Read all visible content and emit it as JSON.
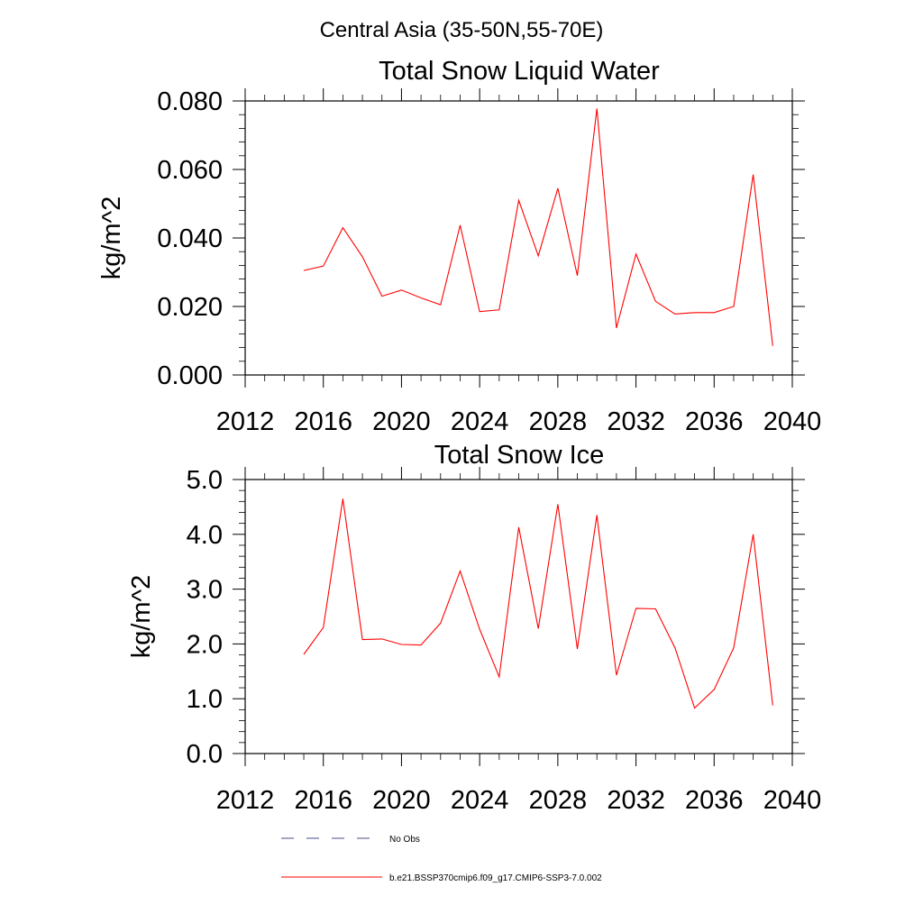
{
  "page": {
    "suptitle": "Central Asia (35-50N,55-70E)"
  },
  "chart_data": [
    {
      "type": "line",
      "title": "Total Snow Liquid Water",
      "ylabel": "kg/m^2",
      "xlim": [
        2012,
        2040
      ],
      "ylim": [
        0.0,
        0.08
      ],
      "xticks": [
        2012,
        2016,
        2020,
        2024,
        2028,
        2032,
        2036,
        2040
      ],
      "xtick_labels": [
        "2012",
        "2016",
        "2020",
        "2024",
        "2028",
        "2032",
        "2036",
        "2040"
      ],
      "yticks": [
        0.0,
        0.02,
        0.04,
        0.06,
        0.08
      ],
      "ytick_labels": [
        "0.000",
        "0.020",
        "0.040",
        "0.060",
        "0.080"
      ],
      "series": [
        {
          "name": "b.e21.BSSP370cmip6.f09_g17.CMIP6-SSP3-7.0.002",
          "color": "#ff0000",
          "x": [
            2015,
            2016,
            2017,
            2018,
            2019,
            2020,
            2021,
            2022,
            2023,
            2024,
            2025,
            2026,
            2027,
            2028,
            2029,
            2030,
            2031,
            2032,
            2033,
            2034,
            2035,
            2036,
            2037,
            2038,
            2039
          ],
          "y": [
            0.0305,
            0.0318,
            0.043,
            0.0345,
            0.023,
            0.0248,
            0.0225,
            0.0205,
            0.0437,
            0.0185,
            0.019,
            0.051,
            0.0348,
            0.0545,
            0.029,
            0.0778,
            0.0137,
            0.0353,
            0.0215,
            0.0178,
            0.0182,
            0.0182,
            0.02,
            0.0585,
            0.0085
          ]
        }
      ]
    },
    {
      "type": "line",
      "title": "Total Snow Ice",
      "ylabel": "kg/m^2",
      "xlim": [
        2012,
        2040
      ],
      "ylim": [
        0.0,
        5.0
      ],
      "xticks": [
        2012,
        2016,
        2020,
        2024,
        2028,
        2032,
        2036,
        2040
      ],
      "xtick_labels": [
        "2012",
        "2016",
        "2020",
        "2024",
        "2028",
        "2032",
        "2036",
        "2040"
      ],
      "yticks": [
        0.0,
        1.0,
        2.0,
        3.0,
        4.0,
        5.0
      ],
      "ytick_labels": [
        "0.0",
        "1.0",
        "2.0",
        "3.0",
        "4.0",
        "5.0"
      ],
      "series": [
        {
          "name": "b.e21.BSSP370cmip6.f09_g17.CMIP6-SSP3-7.0.002",
          "color": "#ff0000",
          "x": [
            2015,
            2016,
            2017,
            2018,
            2019,
            2020,
            2021,
            2022,
            2023,
            2024,
            2025,
            2026,
            2027,
            2028,
            2029,
            2030,
            2031,
            2032,
            2033,
            2034,
            2035,
            2036,
            2037,
            2038,
            2039
          ],
          "y": [
            1.81,
            2.3,
            4.65,
            2.08,
            2.09,
            1.99,
            1.98,
            2.38,
            3.33,
            2.27,
            1.4,
            4.13,
            2.28,
            4.55,
            1.91,
            4.35,
            1.43,
            2.65,
            2.64,
            1.93,
            0.83,
            1.17,
            1.93,
            4.0,
            0.88
          ]
        }
      ]
    }
  ],
  "legend": [
    {
      "label": "No Obs",
      "color": "#4b4b8c",
      "style": "dashed"
    },
    {
      "label": "b.e21.BSSP370cmip6.f09_g17.CMIP6-SSP3-7.0.002",
      "color": "#ff0000",
      "style": "solid"
    }
  ]
}
